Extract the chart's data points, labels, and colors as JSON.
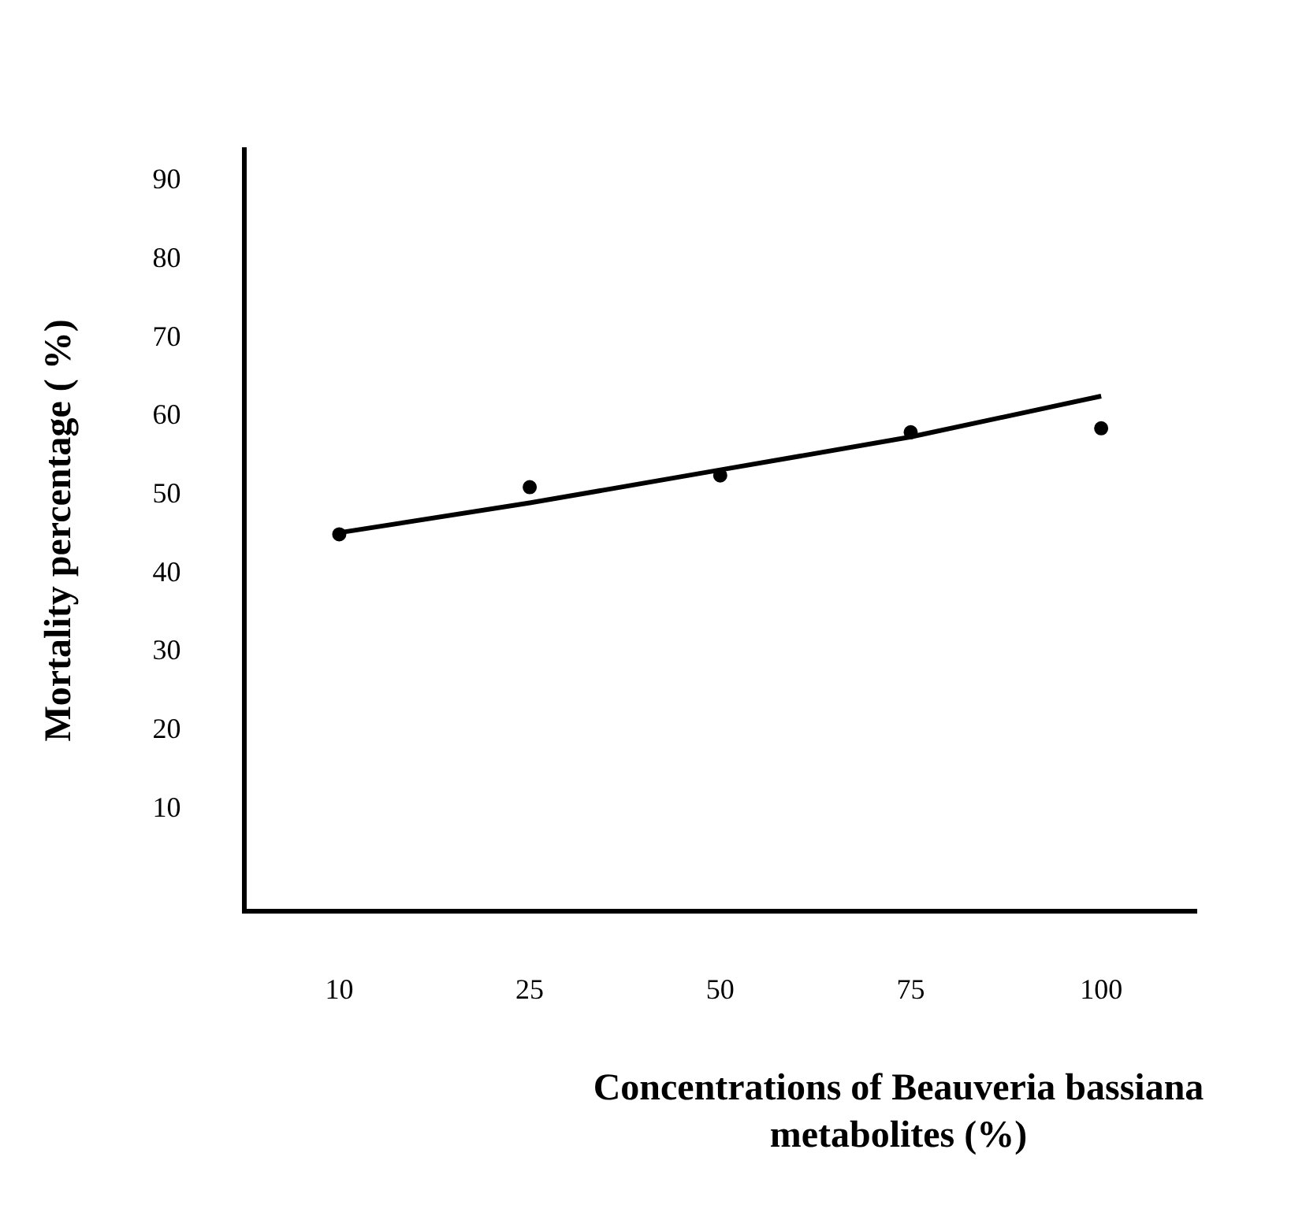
{
  "chart_data": {
    "type": "scatter",
    "xlabel": "Concentrations of Beauveria bassiana metabolites (%)",
    "ylabel": "Mortality percentage ( %)",
    "categories": [
      "10",
      "25",
      "50",
      "75",
      "100"
    ],
    "series": [
      {
        "color": "#000000",
        "marker": "circle",
        "values": [
          45,
          51,
          52.5,
          58,
          58.5
        ]
      },
      {
        "type": "line",
        "color": "#000000",
        "marker": "none",
        "values": [
          45.2,
          49,
          53.2,
          57.4,
          62.6
        ]
      }
    ],
    "ylim": [
      -3,
      94
    ],
    "yticks": [
      10,
      20,
      30,
      40,
      50,
      60,
      70,
      80,
      90
    ],
    "grid": false,
    "legend": false
  }
}
